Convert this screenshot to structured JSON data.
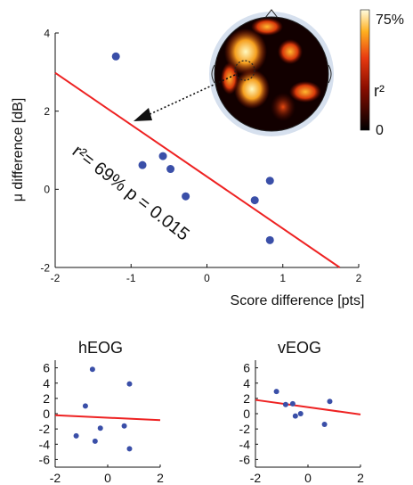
{
  "colors": {
    "point": "#3a4fa8",
    "fit_line": "#ee2222",
    "axis": "#111111"
  },
  "chart_data": [
    {
      "id": "main",
      "type": "scatter",
      "xlabel": "Score difference [pts]",
      "ylabel": "μ difference [dB]",
      "xlim": [
        -2,
        2
      ],
      "ylim": [
        -2,
        4
      ],
      "xticks": [
        -2,
        -1,
        0,
        1,
        2
      ],
      "xtick_labels": [
        "-2",
        "-1",
        "0",
        "1",
        "2"
      ],
      "yticks": [
        -2,
        0,
        2,
        4
      ],
      "ytick_labels": [
        "-2",
        "0",
        "2",
        "4"
      ],
      "points": [
        {
          "x": -1.2,
          "y": 3.4
        },
        {
          "x": -0.85,
          "y": 0.62
        },
        {
          "x": -0.58,
          "y": 0.85
        },
        {
          "x": -0.48,
          "y": 0.52
        },
        {
          "x": -0.28,
          "y": -0.18
        },
        {
          "x": 0.63,
          "y": -0.28
        },
        {
          "x": 0.83,
          "y": 0.22
        },
        {
          "x": 0.83,
          "y": -1.3
        }
      ],
      "fit_line": {
        "x": [
          -2,
          1.75
        ],
        "y": [
          2.98,
          -2
        ]
      },
      "annotation": "r²= 69% p = 0.015",
      "inset": {
        "type": "heatmap",
        "colorbar_max": "75%",
        "colorbar_min": "0",
        "colorbar_label": "r²"
      }
    },
    {
      "id": "heog",
      "type": "scatter",
      "title": "hEOG",
      "xlim": [
        -2,
        2
      ],
      "ylim": [
        -7,
        7
      ],
      "xticks": [
        -2,
        0,
        2
      ],
      "xtick_labels": [
        "-2",
        "0",
        "2"
      ],
      "yticks": [
        6,
        4,
        2,
        0,
        -2,
        -4,
        -6
      ],
      "ytick_labels": [
        "6",
        "4",
        "2",
        "0",
        "-2",
        "-4",
        "-6"
      ],
      "points": [
        {
          "x": -1.2,
          "y": -2.9
        },
        {
          "x": -0.85,
          "y": 1.0
        },
        {
          "x": -0.58,
          "y": 5.8
        },
        {
          "x": -0.48,
          "y": -3.6
        },
        {
          "x": -0.28,
          "y": -1.9
        },
        {
          "x": 0.63,
          "y": -1.6
        },
        {
          "x": 0.83,
          "y": 3.9
        },
        {
          "x": 0.83,
          "y": -4.6
        }
      ],
      "fit_line": {
        "x": [
          -2,
          2
        ],
        "y": [
          -0.2,
          -0.85
        ]
      }
    },
    {
      "id": "veog",
      "type": "scatter",
      "title": "vEOG",
      "xlim": [
        -2,
        2
      ],
      "ylim": [
        -7,
        7
      ],
      "xticks": [
        -2,
        0,
        2
      ],
      "xtick_labels": [
        "-2",
        "0",
        "2"
      ],
      "yticks": [
        6,
        4,
        2,
        0,
        -2,
        -4,
        -6
      ],
      "ytick_labels": [
        "6",
        "4",
        "2",
        "0",
        "-2",
        "-4",
        "-6"
      ],
      "points": [
        {
          "x": -1.2,
          "y": 2.9
        },
        {
          "x": -0.85,
          "y": 1.2
        },
        {
          "x": -0.58,
          "y": 1.3
        },
        {
          "x": -0.48,
          "y": -0.3
        },
        {
          "x": -0.28,
          "y": 0.0
        },
        {
          "x": 0.63,
          "y": -1.4
        },
        {
          "x": 0.83,
          "y": 1.6
        }
      ],
      "fit_line": {
        "x": [
          -2,
          2
        ],
        "y": [
          1.8,
          -0.1
        ]
      }
    }
  ]
}
